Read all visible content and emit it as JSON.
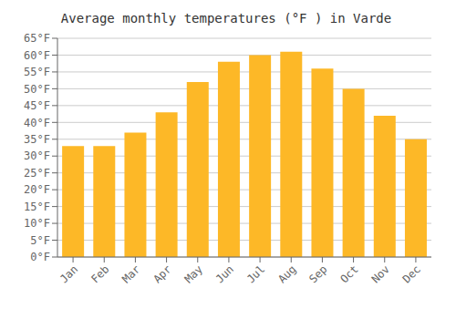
{
  "chart_data": {
    "type": "bar",
    "title": "Average monthly temperatures (°F ) in Varde",
    "categories": [
      "Jan",
      "Feb",
      "Mar",
      "Apr",
      "May",
      "Jun",
      "Jul",
      "Aug",
      "Sep",
      "Oct",
      "Nov",
      "Dec"
    ],
    "values": [
      33,
      33,
      37,
      43,
      52,
      58,
      60,
      61,
      56,
      50,
      42,
      35
    ],
    "color": "#FDB827",
    "ylim": [
      0,
      65
    ],
    "yticks": [
      {
        "value": 0,
        "label": "0°F"
      },
      {
        "value": 5,
        "label": "5°F"
      },
      {
        "value": 10,
        "label": "10°F"
      },
      {
        "value": 15,
        "label": "15°F"
      },
      {
        "value": 20,
        "label": "20°F"
      },
      {
        "value": 25,
        "label": "25°F"
      },
      {
        "value": 30,
        "label": "30°F"
      },
      {
        "value": 35,
        "label": "35°F"
      },
      {
        "value": 40,
        "label": "40°F"
      },
      {
        "value": 45,
        "label": "45°F"
      },
      {
        "value": 50,
        "label": "50°F"
      },
      {
        "value": 55,
        "label": "55°F"
      },
      {
        "value": 60,
        "label": "60°F"
      },
      {
        "value": 65,
        "label": "65°F"
      }
    ],
    "grid": true
  }
}
